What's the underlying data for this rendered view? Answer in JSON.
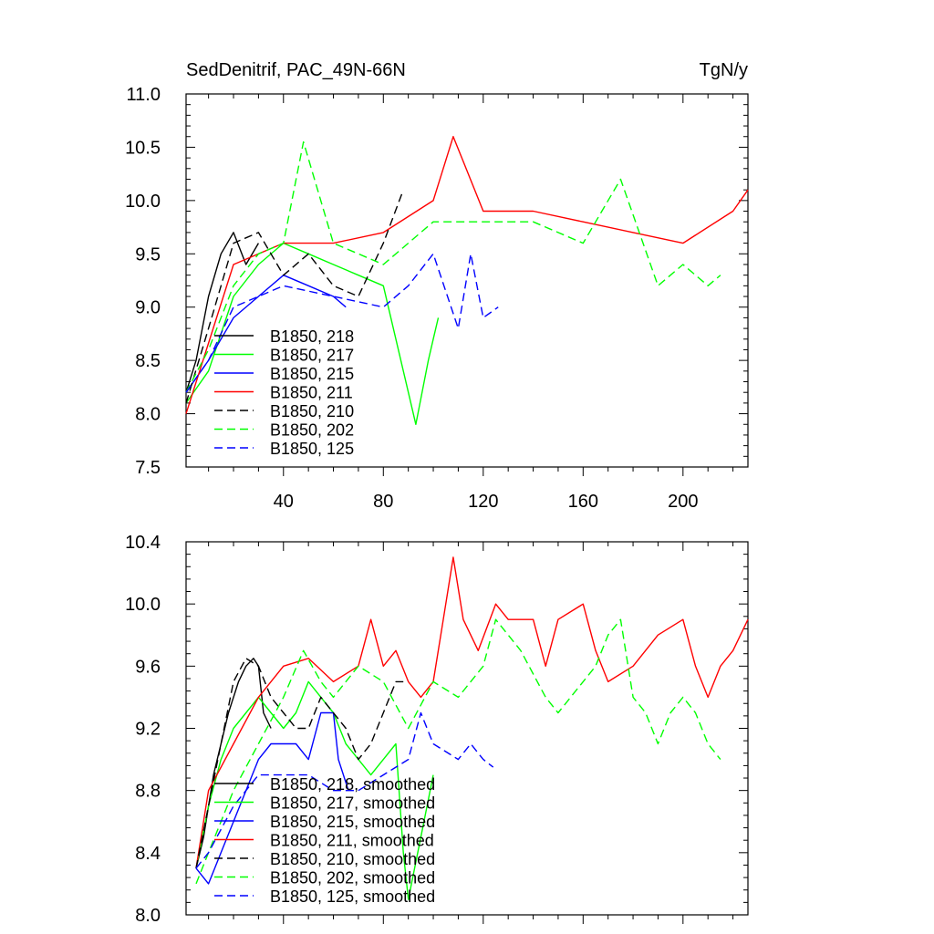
{
  "chart_data": [
    {
      "type": "line",
      "title": "SedDenitrif, PAC_49N-66N",
      "units": "TgN/y",
      "xlabel": "",
      "ylabel": "",
      "xlim": [
        1,
        226
      ],
      "ylim": [
        7.5,
        11.0
      ],
      "xticks": [
        40,
        80,
        120,
        160,
        200
      ],
      "xtick_labels": [
        "40",
        "80",
        "120",
        "160",
        "200"
      ],
      "yticks": [
        7.5,
        8.0,
        8.5,
        9.0,
        9.5,
        10.0,
        10.5,
        11.0
      ],
      "ytick_labels": [
        "7.5",
        "8.0",
        "8.5",
        "9.0",
        "9.5",
        "10.0",
        "10.5",
        "11.0"
      ],
      "legend_position": "bottom-left",
      "series": [
        {
          "name": "B1850, 218",
          "color": "#000000",
          "dash": "solid",
          "x": [
            1,
            5,
            10,
            15,
            20,
            25,
            30
          ],
          "y": [
            8.2,
            8.5,
            9.1,
            9.5,
            9.7,
            9.4,
            9.6
          ]
        },
        {
          "name": "B1850, 217",
          "color": "#00ff00",
          "dash": "solid",
          "x": [
            1,
            10,
            20,
            30,
            40,
            50,
            60,
            70,
            80,
            90,
            93,
            98,
            100,
            102
          ],
          "y": [
            8.1,
            8.4,
            9.1,
            9.4,
            9.6,
            9.5,
            9.4,
            9.3,
            9.2,
            8.2,
            7.9,
            8.5,
            8.7,
            8.9
          ]
        },
        {
          "name": "B1850, 215",
          "color": "#0000ff",
          "dash": "solid",
          "x": [
            1,
            10,
            20,
            30,
            40,
            50,
            60,
            65
          ],
          "y": [
            8.2,
            8.5,
            8.9,
            9.1,
            9.3,
            9.2,
            9.1,
            9.0
          ]
        },
        {
          "name": "B1850, 211",
          "color": "#ff0000",
          "dash": "solid",
          "x": [
            1,
            20,
            40,
            60,
            80,
            100,
            108,
            120,
            140,
            160,
            180,
            200,
            220,
            226
          ],
          "y": [
            8.0,
            9.4,
            9.6,
            9.6,
            9.7,
            10.0,
            10.6,
            9.9,
            9.9,
            9.8,
            9.7,
            9.6,
            9.9,
            10.1
          ]
        },
        {
          "name": "B1850, 210",
          "color": "#000000",
          "dash": "dash",
          "x": [
            1,
            10,
            20,
            30,
            40,
            50,
            60,
            70,
            80,
            88
          ],
          "y": [
            8.1,
            8.8,
            9.6,
            9.7,
            9.3,
            9.5,
            9.2,
            9.1,
            9.6,
            10.1
          ]
        },
        {
          "name": "B1850, 202",
          "color": "#00ff00",
          "dash": "dash",
          "x": [
            1,
            10,
            20,
            30,
            40,
            48,
            60,
            80,
            100,
            120,
            140,
            160,
            175,
            190,
            200,
            210,
            215
          ],
          "y": [
            8.2,
            8.6,
            9.2,
            9.5,
            9.6,
            10.55,
            9.6,
            9.4,
            9.8,
            9.8,
            9.8,
            9.6,
            10.2,
            9.2,
            9.4,
            9.2,
            9.3
          ]
        },
        {
          "name": "B1850, 125",
          "color": "#0000ff",
          "dash": "dash",
          "x": [
            1,
            10,
            20,
            40,
            60,
            80,
            90,
            100,
            110,
            115,
            120,
            126
          ],
          "y": [
            8.2,
            8.5,
            9.0,
            9.2,
            9.1,
            9.0,
            9.2,
            9.5,
            8.8,
            9.5,
            8.9,
            9.0
          ]
        }
      ]
    },
    {
      "type": "line",
      "title": "",
      "xlabel": "",
      "ylabel": "",
      "xlim": [
        1,
        226
      ],
      "ylim": [
        8.0,
        10.4
      ],
      "xticks": [
        40,
        80,
        120,
        160,
        200
      ],
      "xtick_labels": [],
      "yticks": [
        8.0,
        8.4,
        8.8,
        9.2,
        9.6,
        10.0,
        10.4
      ],
      "ytick_labels": [
        "8.0",
        "8.4",
        "8.8",
        "9.2",
        "9.6",
        "10.0",
        "10.4"
      ],
      "legend_position": "bottom-left",
      "series": [
        {
          "name": "B1850, 218, smoothed",
          "color": "#000000",
          "dash": "solid",
          "x": [
            5,
            8,
            12,
            15,
            18,
            22,
            25,
            28,
            30,
            32,
            35
          ],
          "y": [
            8.3,
            8.5,
            8.9,
            9.1,
            9.3,
            9.5,
            9.6,
            9.65,
            9.6,
            9.3,
            9.2
          ]
        },
        {
          "name": "B1850, 217, smoothed",
          "color": "#00ff00",
          "dash": "solid",
          "x": [
            5,
            10,
            15,
            20,
            25,
            30,
            35,
            40,
            45,
            50,
            55,
            60,
            65,
            70,
            75,
            80,
            85,
            88,
            90,
            95,
            100
          ],
          "y": [
            8.3,
            8.7,
            9.0,
            9.2,
            9.3,
            9.4,
            9.3,
            9.2,
            9.3,
            9.5,
            9.4,
            9.3,
            9.1,
            9.0,
            8.9,
            9.0,
            9.1,
            8.4,
            8.1,
            8.5,
            8.9
          ]
        },
        {
          "name": "B1850, 215, smoothed",
          "color": "#0000ff",
          "dash": "solid",
          "x": [
            5,
            10,
            15,
            20,
            25,
            30,
            35,
            40,
            45,
            50,
            55,
            60,
            62,
            66
          ],
          "y": [
            8.3,
            8.2,
            8.4,
            8.6,
            8.8,
            9.0,
            9.1,
            9.1,
            9.1,
            9.0,
            9.3,
            9.3,
            9.0,
            8.8
          ]
        },
        {
          "name": "B1850, 211, smoothed",
          "color": "#ff0000",
          "dash": "solid",
          "x": [
            5,
            10,
            20,
            30,
            40,
            50,
            60,
            70,
            75,
            80,
            85,
            90,
            95,
            100,
            104,
            108,
            112,
            118,
            125,
            130,
            140,
            145,
            150,
            160,
            165,
            170,
            180,
            190,
            200,
            205,
            210,
            215,
            220,
            226
          ],
          "y": [
            8.3,
            8.8,
            9.1,
            9.4,
            9.6,
            9.65,
            9.5,
            9.6,
            9.9,
            9.6,
            9.7,
            9.5,
            9.4,
            9.5,
            9.9,
            10.3,
            9.9,
            9.7,
            10.0,
            9.9,
            9.9,
            9.6,
            9.9,
            10.0,
            9.7,
            9.5,
            9.6,
            9.8,
            9.9,
            9.6,
            9.4,
            9.6,
            9.7,
            9.9
          ]
        },
        {
          "name": "B1850, 210, smoothed",
          "color": "#000000",
          "dash": "dash",
          "x": [
            5,
            10,
            15,
            20,
            25,
            30,
            35,
            40,
            45,
            50,
            55,
            60,
            65,
            70,
            75,
            80,
            85,
            88
          ],
          "y": [
            8.3,
            8.7,
            9.1,
            9.5,
            9.65,
            9.6,
            9.4,
            9.3,
            9.2,
            9.2,
            9.4,
            9.3,
            9.2,
            9.0,
            9.1,
            9.3,
            9.5,
            9.5
          ]
        },
        {
          "name": "B1850, 202, smoothed",
          "color": "#00ff00",
          "dash": "dash",
          "x": [
            5,
            10,
            20,
            30,
            40,
            48,
            55,
            60,
            70,
            80,
            90,
            100,
            110,
            120,
            125,
            135,
            145,
            150,
            160,
            165,
            170,
            175,
            180,
            185,
            190,
            195,
            200,
            205,
            210,
            215
          ],
          "y": [
            8.2,
            8.4,
            8.8,
            9.1,
            9.4,
            9.7,
            9.5,
            9.4,
            9.6,
            9.5,
            9.2,
            9.5,
            9.4,
            9.6,
            9.9,
            9.7,
            9.4,
            9.3,
            9.5,
            9.6,
            9.8,
            9.9,
            9.4,
            9.3,
            9.1,
            9.3,
            9.4,
            9.3,
            9.1,
            9.0
          ]
        },
        {
          "name": "B1850, 125, smoothed",
          "color": "#0000ff",
          "dash": "dash",
          "x": [
            5,
            10,
            20,
            30,
            40,
            50,
            60,
            70,
            80,
            90,
            95,
            100,
            110,
            115,
            120,
            124
          ],
          "y": [
            8.3,
            8.4,
            8.7,
            8.9,
            8.9,
            8.9,
            8.8,
            8.8,
            8.9,
            9.0,
            9.3,
            9.1,
            9.0,
            9.1,
            9.0,
            8.95
          ]
        }
      ]
    }
  ]
}
